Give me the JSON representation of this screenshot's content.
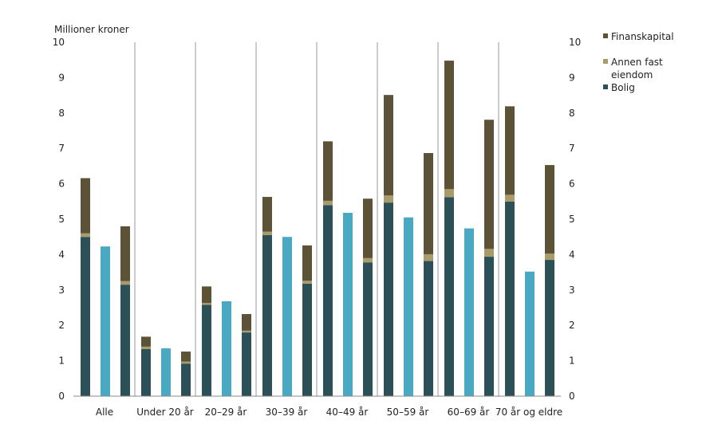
{
  "chart_data": {
    "type": "bar",
    "stacked": true,
    "ylabel": "Millioner kroner",
    "ylim": [
      0,
      10
    ],
    "yticks": [
      "0",
      "1",
      "2",
      "3",
      "4",
      "5",
      "6",
      "7",
      "8",
      "9",
      "10"
    ],
    "right_axis": true,
    "grid": false,
    "legend_position": "top-right",
    "categories": [
      "Alle",
      "Under 20 år",
      "20–29 år",
      "30–39 år",
      "40–49 år",
      "50–59 år",
      "60–69 år",
      "70 år og eldre"
    ],
    "bars_per_category": 3,
    "series": [
      {
        "name": "Bolig",
        "color": "#2b5058",
        "values": [
          [
            4.5,
            0,
            3.15
          ],
          [
            1.33,
            0,
            0.92
          ],
          [
            2.58,
            0,
            1.8
          ],
          [
            4.55,
            0,
            3.18
          ],
          [
            5.4,
            0,
            3.78
          ],
          [
            5.47,
            0,
            3.82
          ],
          [
            5.62,
            0,
            3.94
          ],
          [
            5.5,
            0,
            3.85
          ]
        ]
      },
      {
        "name": "Annen fast eiendom",
        "color": "#a99c6a",
        "values": [
          [
            0.1,
            0,
            0.1
          ],
          [
            0.07,
            0,
            0.06
          ],
          [
            0.05,
            0,
            0.05
          ],
          [
            0.1,
            0,
            0.08
          ],
          [
            0.12,
            0,
            0.12
          ],
          [
            0.2,
            0,
            0.19
          ],
          [
            0.23,
            0,
            0.22
          ],
          [
            0.19,
            0,
            0.18
          ]
        ]
      },
      {
        "name": "Finanskapital",
        "color": "#5b5238",
        "values": [
          [
            1.56,
            0,
            1.55
          ],
          [
            0.28,
            0,
            0.28
          ],
          [
            0.47,
            0,
            0.47
          ],
          [
            0.98,
            0,
            1.0
          ],
          [
            1.68,
            0,
            1.68
          ],
          [
            2.84,
            0,
            2.86
          ],
          [
            3.63,
            0,
            3.65
          ],
          [
            2.5,
            0,
            2.5
          ]
        ]
      },
      {
        "name": "",
        "color": "#4ba8c2",
        "values": [
          [
            0,
            4.23,
            0
          ],
          [
            0,
            1.35,
            0
          ],
          [
            0,
            2.68,
            0
          ],
          [
            0,
            4.5,
            0
          ],
          [
            0,
            5.18,
            0
          ],
          [
            0,
            5.05,
            0
          ],
          [
            0,
            4.74,
            0
          ],
          [
            0,
            3.52,
            0
          ]
        ]
      }
    ],
    "legend": [
      {
        "label": "Finanskapital",
        "color": "#5b5238"
      },
      {
        "label": "Annen fast eiendom",
        "color": "#a99c6a"
      },
      {
        "label": "Bolig",
        "color": "#2b5058"
      }
    ]
  }
}
